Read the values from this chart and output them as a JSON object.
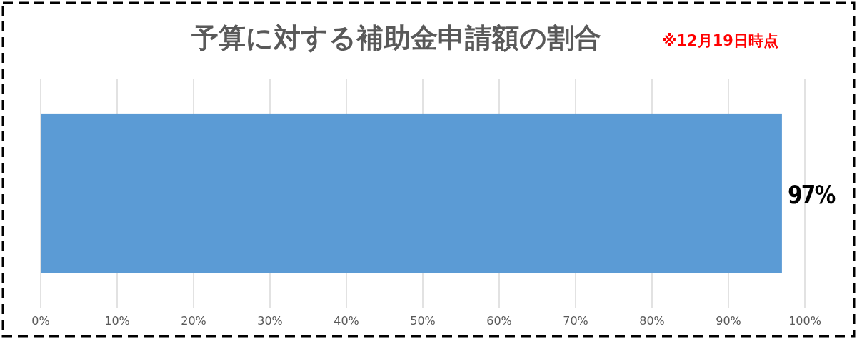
{
  "chart_data": {
    "type": "bar",
    "orientation": "horizontal",
    "title": "予算に対する補助金申請額の割合",
    "subtitle": "※12月19日時点",
    "categories": [
      null
    ],
    "values": [
      97
    ],
    "color": "#5b9bd5",
    "value_labels": [
      "97%"
    ],
    "xlim": [
      0,
      100
    ],
    "xticks": [
      {
        "value": 0,
        "label": "0%"
      },
      {
        "value": 10,
        "label": "10%"
      },
      {
        "value": 20,
        "label": "20%"
      },
      {
        "value": 30,
        "label": "30%"
      },
      {
        "value": 40,
        "label": "40%"
      },
      {
        "value": 50,
        "label": "50%"
      },
      {
        "value": 60,
        "label": "60%"
      },
      {
        "value": 70,
        "label": "70%"
      },
      {
        "value": 80,
        "label": "80%"
      },
      {
        "value": 90,
        "label": "90%"
      },
      {
        "value": 100,
        "label": "100%"
      }
    ],
    "grid": "x"
  }
}
